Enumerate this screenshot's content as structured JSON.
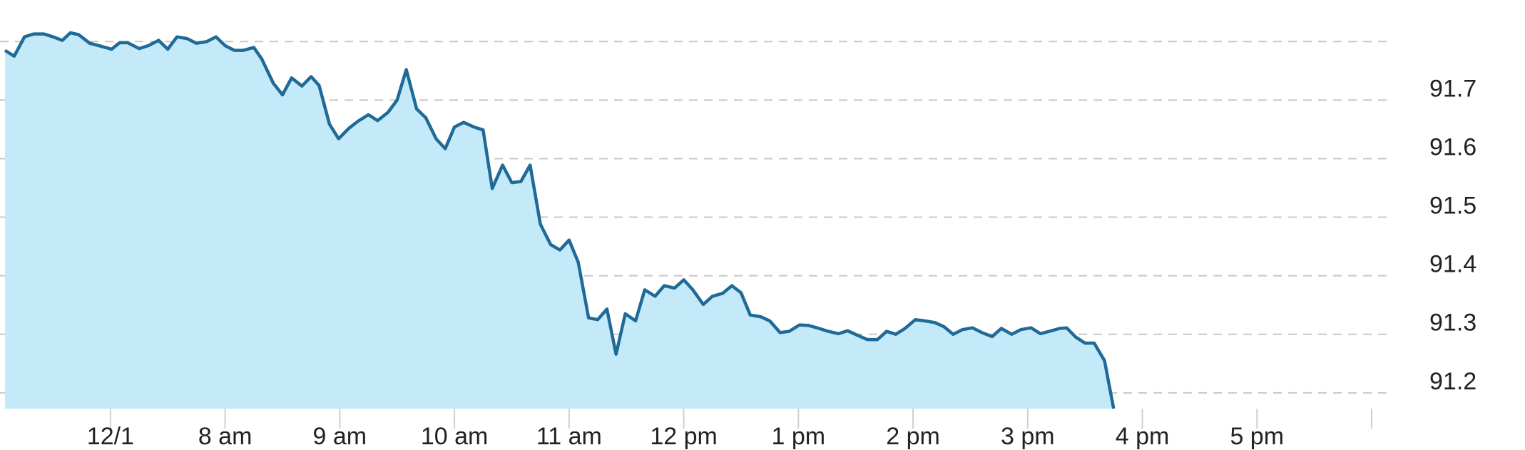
{
  "chart_data": {
    "type": "area",
    "x": [
      6.08,
      6.16,
      6.25,
      6.33,
      6.42,
      6.5,
      6.58,
      6.65,
      6.72,
      6.82,
      6.92,
      7.01,
      7.08,
      7.15,
      7.25,
      7.33,
      7.42,
      7.5,
      7.58,
      7.67,
      7.75,
      7.84,
      7.92,
      8.0,
      8.08,
      8.16,
      8.25,
      8.32,
      8.42,
      8.5,
      8.58,
      8.67,
      8.75,
      8.82,
      8.91,
      8.99,
      9.08,
      9.16,
      9.25,
      9.33,
      9.42,
      9.5,
      9.58,
      9.67,
      9.75,
      9.84,
      9.92,
      10.0,
      10.08,
      10.17,
      10.25,
      10.33,
      10.42,
      10.5,
      10.58,
      10.66,
      10.75,
      10.84,
      10.92,
      11.0,
      11.08,
      11.17,
      11.25,
      11.33,
      11.41,
      11.49,
      11.58,
      11.66,
      11.75,
      11.83,
      11.92,
      12.0,
      12.08,
      12.17,
      12.25,
      12.34,
      12.42,
      12.5,
      12.58,
      12.67,
      12.75,
      12.84,
      12.92,
      13.01,
      13.09,
      13.18,
      13.26,
      13.35,
      13.43,
      13.52,
      13.6,
      13.69,
      13.77,
      13.85,
      13.93,
      14.02,
      14.1,
      14.19,
      14.27,
      14.35,
      14.43,
      14.52,
      14.6,
      14.69,
      14.77,
      14.86,
      14.94,
      15.03,
      15.11,
      15.19,
      15.28,
      15.34,
      15.42,
      15.5,
      15.58,
      15.67,
      15.75
    ],
    "values": [
      91.785,
      91.775,
      91.808,
      91.813,
      91.813,
      91.808,
      91.802,
      91.815,
      91.812,
      91.797,
      91.792,
      91.787,
      91.798,
      91.798,
      91.788,
      91.793,
      91.802,
      91.787,
      91.808,
      91.805,
      91.797,
      91.8,
      91.808,
      91.793,
      91.785,
      91.785,
      91.79,
      91.77,
      91.729,
      91.709,
      91.738,
      91.724,
      91.74,
      91.725,
      91.659,
      91.634,
      91.652,
      91.664,
      91.675,
      91.665,
      91.679,
      91.7,
      91.752,
      91.685,
      91.67,
      91.634,
      91.617,
      91.654,
      91.662,
      91.654,
      91.649,
      91.549,
      91.589,
      91.559,
      91.561,
      91.589,
      91.488,
      91.453,
      91.444,
      91.461,
      91.423,
      91.328,
      91.325,
      91.343,
      91.266,
      91.335,
      91.323,
      91.376,
      91.365,
      91.383,
      91.379,
      91.393,
      91.376,
      91.351,
      91.365,
      91.37,
      91.383,
      91.371,
      91.333,
      91.33,
      91.323,
      91.303,
      91.305,
      91.316,
      91.315,
      91.31,
      91.305,
      91.301,
      91.306,
      91.298,
      91.291,
      91.291,
      91.305,
      91.3,
      91.31,
      91.325,
      91.323,
      91.32,
      91.313,
      91.3,
      91.308,
      91.311,
      91.303,
      91.296,
      91.31,
      91.3,
      91.308,
      91.311,
      91.301,
      91.305,
      91.31,
      91.311,
      91.295,
      91.285,
      91.285,
      91.255,
      91.173
    ],
    "line_color": "#1f6a96",
    "fill_color": "#c4eaf9",
    "xlim": [
      6.08,
      18
    ],
    "xticks": [
      {
        "value": 7,
        "label": "12/1"
      },
      {
        "value": 8,
        "label": "8 am"
      },
      {
        "value": 9,
        "label": "9 am"
      },
      {
        "value": 10,
        "label": "10 am"
      },
      {
        "value": 11,
        "label": "11 am"
      },
      {
        "value": 12,
        "label": "12 pm"
      },
      {
        "value": 13,
        "label": "1 pm"
      },
      {
        "value": 14,
        "label": "2 pm"
      },
      {
        "value": 15,
        "label": "3 pm"
      },
      {
        "value": 16,
        "label": "4 pm"
      },
      {
        "value": 17,
        "label": "5 pm"
      }
    ],
    "ylim": [
      91.173,
      91.871
    ],
    "yticks": [
      91.2,
      91.3,
      91.4,
      91.5,
      91.6,
      91.7
    ],
    "grid_lines": [
      91.2,
      91.3,
      91.4,
      91.5,
      91.6,
      91.7,
      91.8
    ],
    "grid": true
  }
}
